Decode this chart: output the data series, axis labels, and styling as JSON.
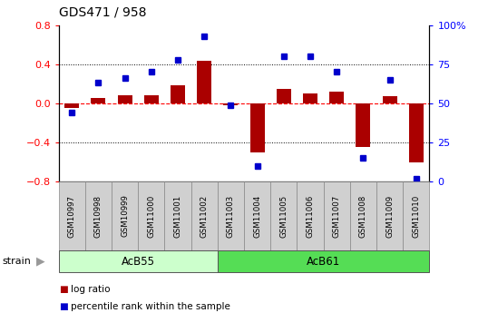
{
  "title": "GDS471 / 958",
  "samples": [
    "GSM10997",
    "GSM10998",
    "GSM10999",
    "GSM11000",
    "GSM11001",
    "GSM11002",
    "GSM11003",
    "GSM11004",
    "GSM11005",
    "GSM11006",
    "GSM11007",
    "GSM11008",
    "GSM11009",
    "GSM11010"
  ],
  "log_ratio": [
    -0.05,
    0.05,
    0.08,
    0.08,
    0.18,
    0.43,
    -0.02,
    -0.5,
    0.15,
    0.1,
    0.12,
    -0.45,
    0.07,
    -0.6
  ],
  "percentile_rank": [
    44,
    63,
    66,
    70,
    78,
    93,
    49,
    10,
    80,
    80,
    70,
    15,
    65,
    2
  ],
  "groups": [
    {
      "label": "AcB55",
      "start": 0,
      "end": 5,
      "color": "#CCFFCC"
    },
    {
      "label": "AcB61",
      "start": 6,
      "end": 13,
      "color": "#55DD55"
    }
  ],
  "bar_color": "#AA0000",
  "dot_color": "#0000CC",
  "ylim_left": [
    -0.8,
    0.8
  ],
  "ylim_right": [
    0,
    100
  ],
  "yticks_left": [
    -0.8,
    -0.4,
    0.0,
    0.4,
    0.8
  ],
  "yticks_right": [
    0,
    25,
    50,
    75,
    100
  ],
  "ytick_labels_right": [
    "0",
    "25",
    "50",
    "75",
    "100%"
  ],
  "background_color": "#ffffff",
  "sample_box_color": "#D0D0D0",
  "strain_label": "strain",
  "legend_items": [
    {
      "label": "log ratio",
      "color": "#AA0000"
    },
    {
      "label": "percentile rank within the sample",
      "color": "#0000CC"
    }
  ]
}
